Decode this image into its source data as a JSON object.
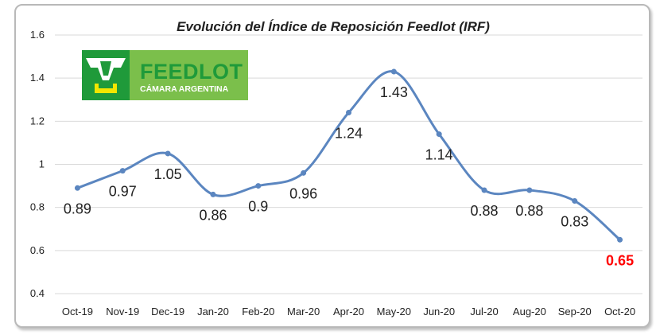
{
  "chart_data": {
    "type": "line",
    "title": "Evolución del Índice de Reposición Feedlot (IRF)",
    "categories": [
      "Oct-19",
      "Nov-19",
      "Dec-19",
      "Jan-20",
      "Feb-20",
      "Mar-20",
      "Apr-20",
      "May-20",
      "Jun-20",
      "Jul-20",
      "Aug-20",
      "Sep-20",
      "Oct-20"
    ],
    "series": [
      {
        "values": [
          0.89,
          0.97,
          1.05,
          0.86,
          0.9,
          0.96,
          1.24,
          1.43,
          1.14,
          0.88,
          0.88,
          0.83,
          0.65
        ]
      }
    ],
    "data_labels": [
      "0.89",
      "0.97",
      "1.05",
      "0.86",
      "0.9",
      "0.96",
      "1.24",
      "1.43",
      "1.14",
      "0.88",
      "0.88",
      "0.83",
      "0.65"
    ],
    "highlighted_label_index": 12,
    "ylim": [
      0.4,
      1.6
    ],
    "yticks": [
      "0.4",
      "0.6",
      "0.8",
      "1",
      "1.2",
      "1.4",
      "1.6"
    ],
    "grid": "horizontal",
    "line_color": "#5b86c0",
    "highlight_color": "#ff0000"
  },
  "logo": {
    "main_text": "FEEDLOT",
    "sub_text": "CÁMARA ARGENTINA",
    "colors": {
      "light_green": "#7bbf4b",
      "dark_green": "#1f9a3a",
      "yellow": "#f2e600"
    }
  }
}
